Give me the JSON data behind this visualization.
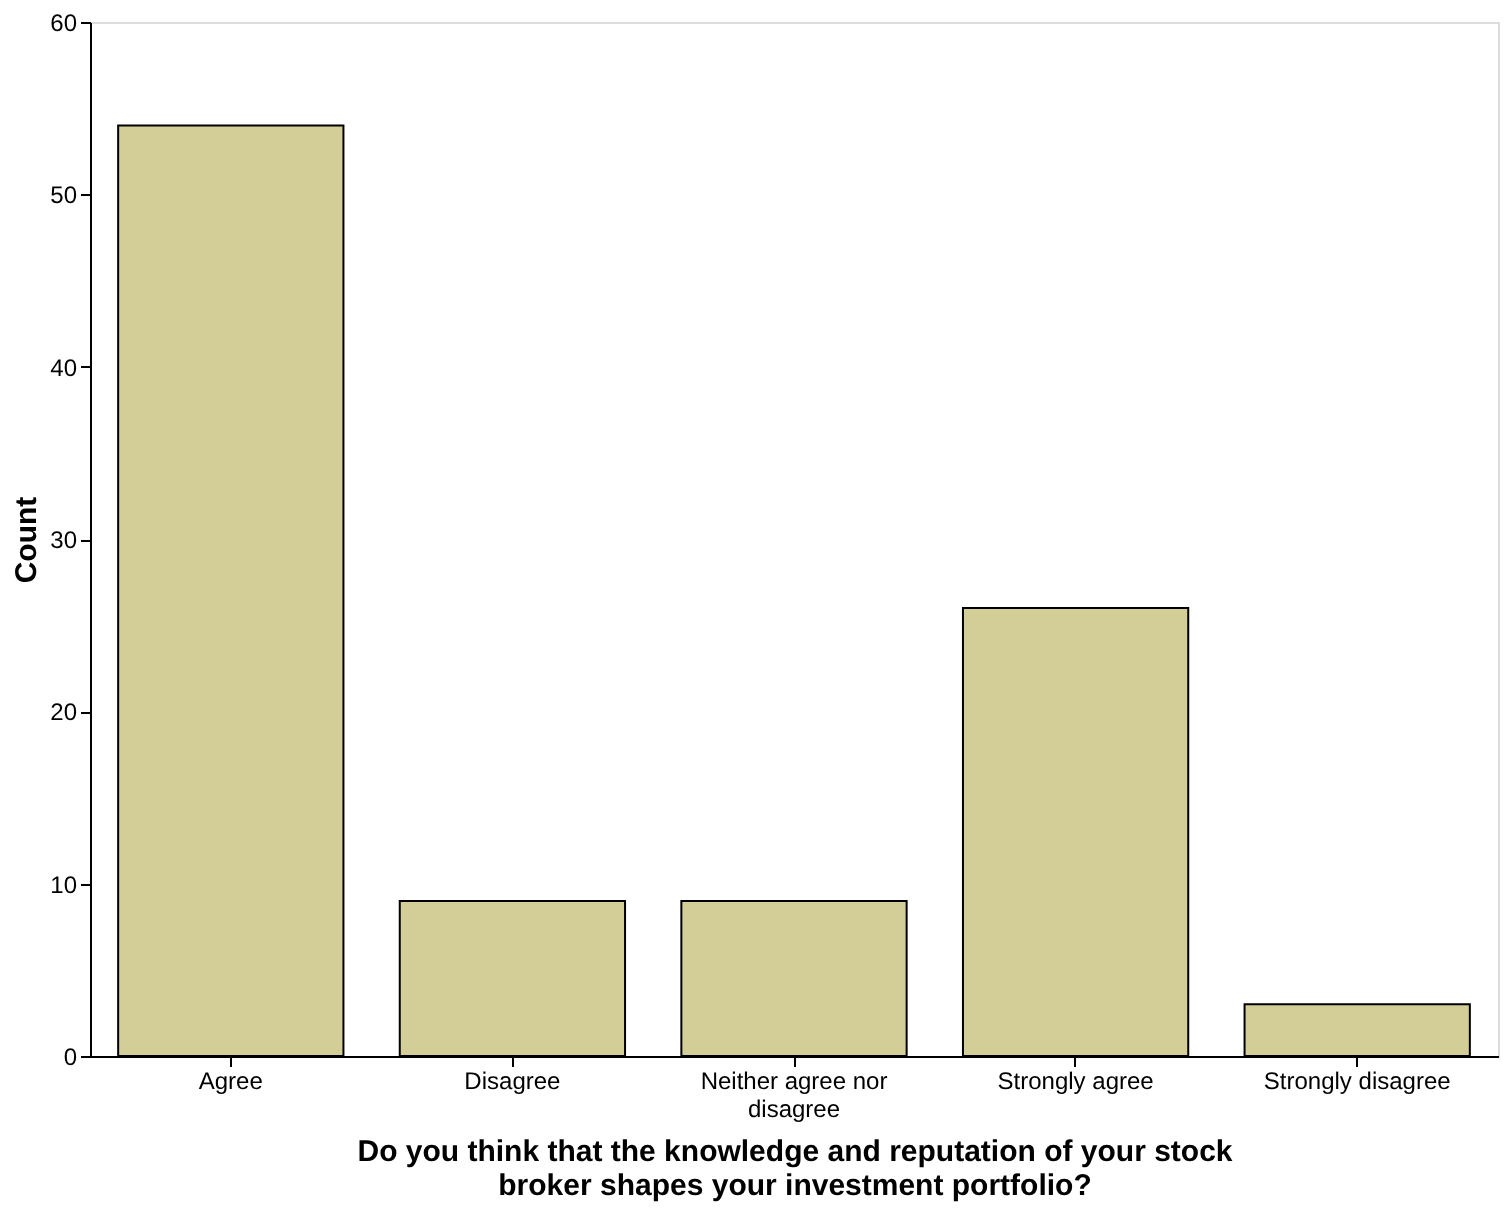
{
  "chart_data": {
    "type": "bar",
    "categories": [
      "Agree",
      "Disagree",
      "Neither agree nor disagree",
      "Strongly agree",
      "Strongly disagree"
    ],
    "values": [
      54,
      9,
      9,
      26,
      3
    ],
    "color": "#d3ce97",
    "xlabel": "Do you think that the knowledge and reputation of your stock broker shapes your investment portfolio?",
    "ylabel": "Count",
    "ylim": [
      0,
      60
    ],
    "yticks": [
      0,
      10,
      20,
      30,
      40,
      50,
      60
    ],
    "grid": false
  }
}
